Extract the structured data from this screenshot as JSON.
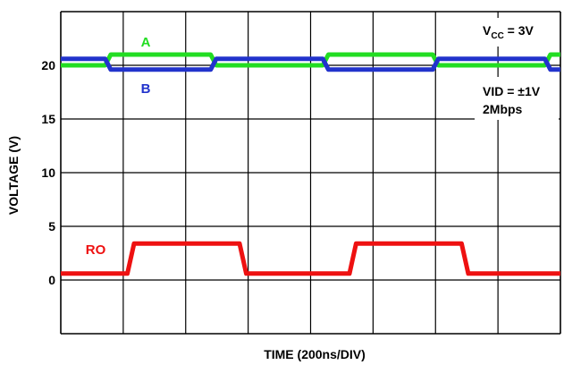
{
  "chart_data": {
    "type": "line",
    "title": "",
    "xlabel": "TIME (200ns/DIV)",
    "ylabel": "VOLTAGE (V)",
    "y_ticks": [
      "20",
      "15",
      "10",
      "5",
      "0"
    ],
    "ylim": [
      -5,
      25
    ],
    "xlim_divisions": [
      0,
      10
    ],
    "grid": true,
    "series": [
      {
        "name": "A",
        "color": "#22dd22",
        "x_div": [
          0,
          0.4,
          0.45,
          1.35,
          1.4,
          2.36,
          2.41,
          3.35,
          3.4,
          4.36,
          4.41,
          4.5
        ],
        "values": [
          20.0,
          20.0,
          21.0,
          21.0,
          20.0,
          20.0,
          21.0,
          21.0,
          20.0,
          20.0,
          21.0,
          21.0
        ]
      },
      {
        "name": "B",
        "color": "#2233cc",
        "x_div": [
          0,
          0.4,
          0.45,
          1.35,
          1.4,
          2.36,
          2.41,
          3.35,
          3.4,
          4.36,
          4.41,
          4.5
        ],
        "values": [
          20.6,
          20.6,
          19.6,
          19.6,
          20.6,
          20.6,
          19.6,
          19.6,
          20.6,
          20.6,
          19.6,
          19.6
        ]
      },
      {
        "name": "RO",
        "color": "#ee1111",
        "x_div": [
          0,
          0.6,
          0.66,
          1.61,
          1.67,
          2.6,
          2.66,
          3.61,
          3.67,
          4.5
        ],
        "values": [
          0.6,
          0.6,
          3.4,
          3.4,
          0.6,
          0.6,
          3.4,
          3.4,
          0.6,
          0.6
        ]
      }
    ],
    "annotations": {
      "vcc_main": "V",
      "vcc_sub": "CC",
      "vcc_rest": " = 3V",
      "vid": "VID = ±1V",
      "rate": "2Mbps"
    }
  }
}
